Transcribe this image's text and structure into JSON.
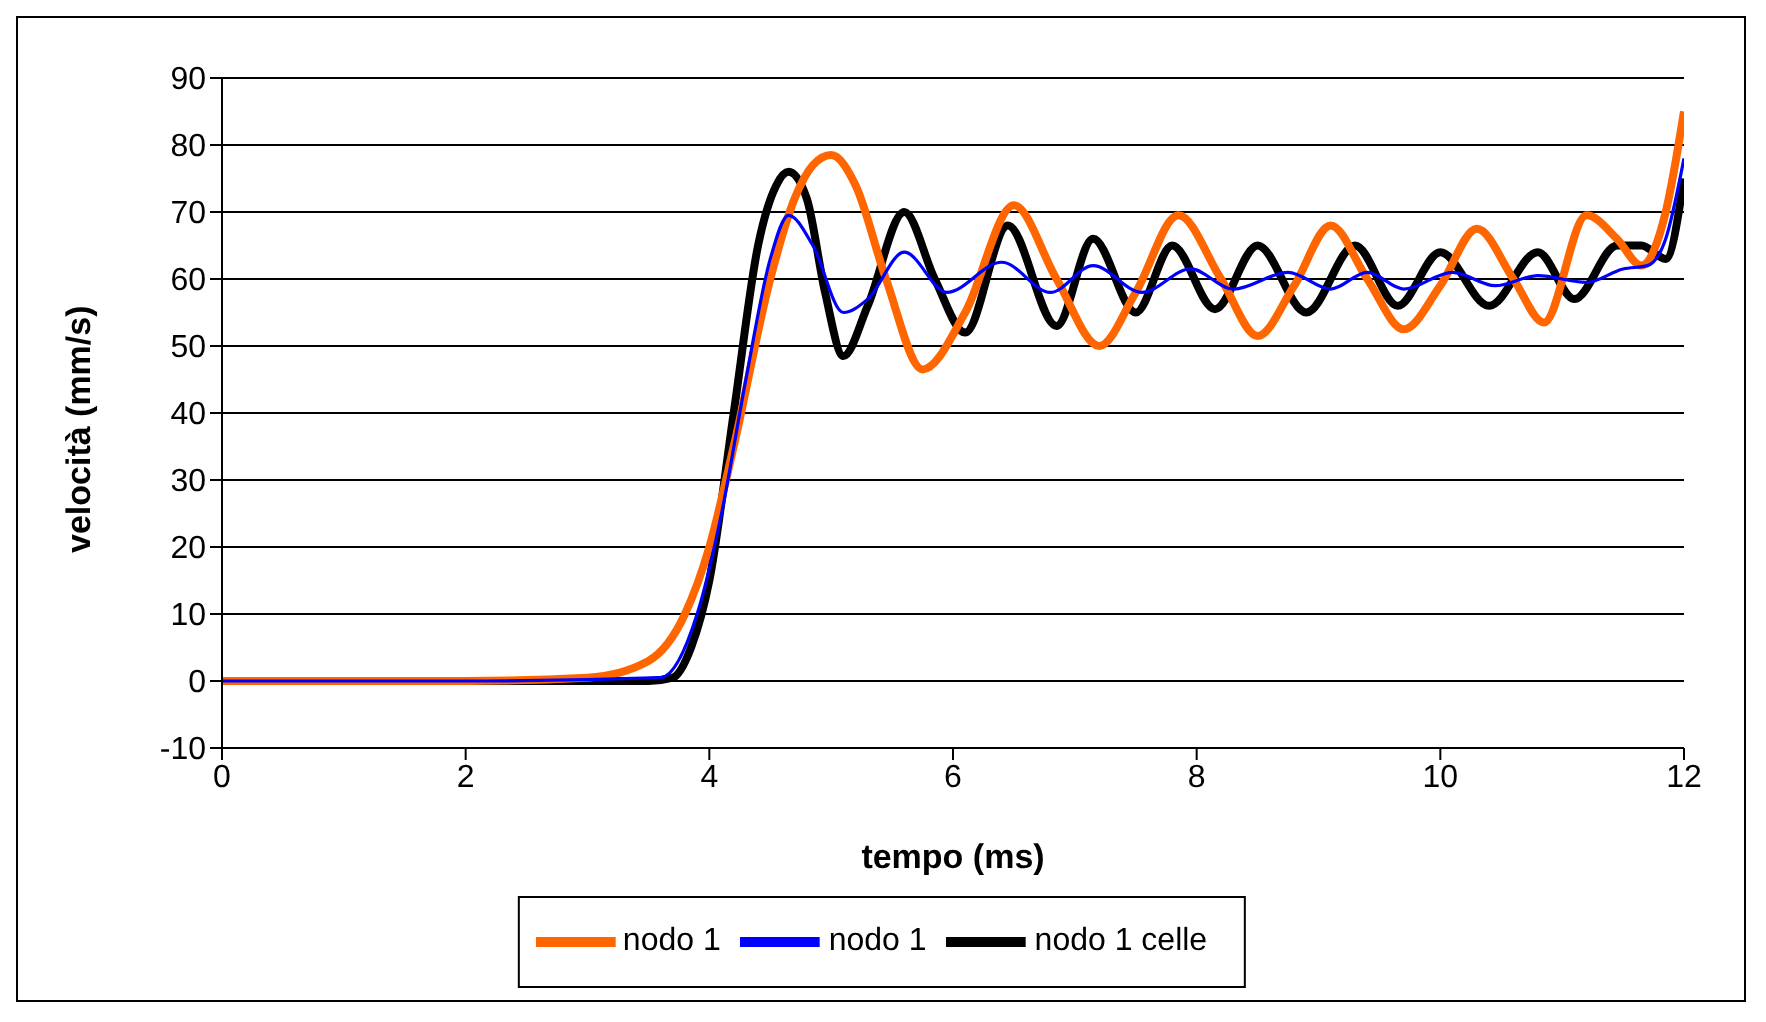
{
  "chart_data": {
    "type": "line",
    "xlabel": "tempo (ms)",
    "ylabel": "velocità (mm/s)",
    "xlim": [
      0,
      12
    ],
    "xticks": [
      0,
      2,
      4,
      6,
      8,
      10,
      12
    ],
    "ylim": [
      -10,
      90
    ],
    "yticks": [
      -10,
      0,
      10,
      20,
      30,
      40,
      50,
      60,
      70,
      80,
      90
    ],
    "grid": "y",
    "legend": "bottom",
    "marker": "none",
    "line_style": "solid",
    "series": [
      {
        "name": "nodo 1 celle",
        "color": "#000000",
        "x": [
          0,
          2,
          3.5,
          3.7,
          3.85,
          4,
          4.2,
          4.4,
          4.55,
          4.65,
          4.8,
          4.95,
          5.1,
          5.3,
          5.6,
          5.85,
          6.1,
          6.45,
          6.85,
          7.15,
          7.5,
          7.8,
          8.15,
          8.5,
          8.9,
          9.3,
          9.65,
          10,
          10.4,
          10.8,
          11.1,
          11.45,
          11.65,
          11.85,
          12
        ],
        "values": [
          0,
          0,
          0,
          0.5,
          5,
          15,
          40,
          65,
          74,
          76,
          72,
          58,
          48.5,
          56,
          70,
          60,
          52,
          68,
          53,
          66,
          55,
          65,
          55.5,
          65,
          55,
          65,
          56,
          64,
          56,
          64,
          57,
          65,
          65,
          63,
          75
        ]
      },
      {
        "name": "nodo 1",
        "color": "#ff6600",
        "x": [
          0,
          2,
          3,
          3.5,
          3.8,
          4,
          4.2,
          4.5,
          4.7,
          4.85,
          5,
          5.2,
          5.45,
          5.75,
          6.1,
          6.5,
          6.85,
          7.2,
          7.5,
          7.85,
          8.2,
          8.5,
          8.8,
          9.1,
          9.4,
          9.7,
          10,
          10.3,
          10.6,
          10.85,
          11.2,
          11.45,
          11.65,
          11.85,
          12
        ],
        "values": [
          0,
          0,
          0.5,
          3,
          10,
          20,
          35,
          60,
          72,
          77,
          78.5,
          74,
          60,
          46.5,
          55,
          71,
          60,
          50,
          58,
          69.5,
          60,
          51.5,
          59,
          68,
          60,
          52.5,
          59,
          67.5,
          60,
          53.5,
          69.5,
          66,
          62,
          70,
          85
        ]
      },
      {
        "name": "nodo 1",
        "color": "#0000ff",
        "x": [
          0,
          2,
          3.6,
          3.9,
          4.1,
          4.3,
          4.5,
          4.65,
          4.85,
          5.1,
          5.3,
          5.6,
          5.95,
          6.4,
          6.8,
          7.15,
          7.55,
          7.95,
          8.3,
          8.75,
          9.1,
          9.4,
          9.7,
          10.1,
          10.45,
          10.8,
          11.2,
          11.5,
          11.7,
          11.85,
          12
        ],
        "values": [
          0,
          0,
          0.5,
          10,
          25,
          45,
          63,
          69.5,
          65,
          55,
          57,
          64,
          58,
          62.5,
          58,
          62,
          58,
          61.5,
          58.5,
          61,
          58.5,
          61,
          58.5,
          61,
          59,
          60.5,
          59.5,
          61.5,
          62,
          66,
          78
        ]
      }
    ]
  }
}
